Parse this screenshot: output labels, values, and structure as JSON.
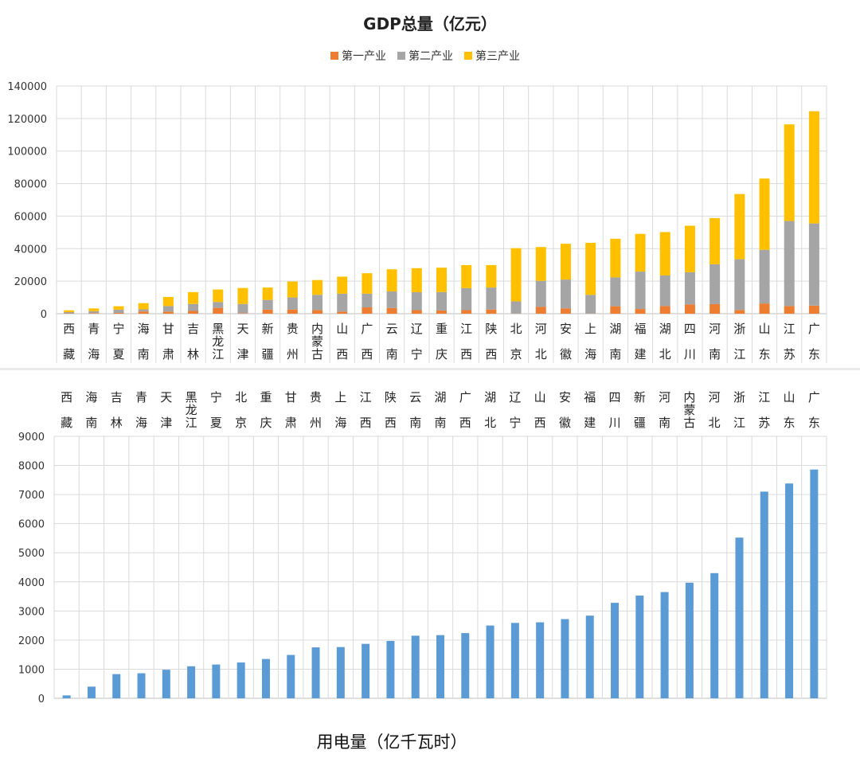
{
  "gdp_chart": {
    "type": "bar",
    "stacked": true,
    "title": "GDP总量（亿元）",
    "legend_position": "top",
    "categories": [
      "西藏",
      "青海",
      "宁夏",
      "海南",
      "甘肃",
      "吉林",
      "黑龙江",
      "天津",
      "新疆",
      "贵州",
      "内蒙古",
      "山西",
      "广西",
      "云南",
      "辽宁",
      "重庆",
      "江西",
      "陕西",
      "北京",
      "河北",
      "安徽",
      "上海",
      "湖南",
      "福建",
      "湖北",
      "四川",
      "河南",
      "浙江",
      "山东",
      "江苏",
      "广东"
    ],
    "series": [
      {
        "name": "第一产业",
        "color": "#ED7D31",
        "values": [
          200,
          350,
          500,
          1400,
          1300,
          1700,
          3600,
          300,
          2500,
          2600,
          2300,
          1300,
          3900,
          3500,
          2200,
          2000,
          2200,
          2600,
          100,
          4200,
          3300,
          100,
          4600,
          2900,
          4700,
          5700,
          5900,
          2300,
          6300,
          4700,
          5000
        ]
      },
      {
        "name": "第二产业",
        "color": "#A5A5A5",
        "values": [
          800,
          1200,
          2000,
          1300,
          3400,
          4300,
          3600,
          5700,
          6000,
          7400,
          9300,
          11000,
          8400,
          10200,
          11000,
          11300,
          13500,
          13500,
          7500,
          16000,
          17700,
          11500,
          17700,
          23000,
          18800,
          19800,
          24500,
          31200,
          33000,
          52300,
          50500
        ]
      },
      {
        "name": "第三产业",
        "color": "#FFC000",
        "values": [
          1100,
          1700,
          2100,
          3800,
          5600,
          7300,
          7700,
          9800,
          7600,
          9800,
          9100,
          10500,
          12600,
          13600,
          14800,
          15000,
          14200,
          13800,
          32700,
          20800,
          22000,
          32000,
          23800,
          23200,
          26700,
          28600,
          28400,
          40100,
          43800,
          59400,
          69000
        ]
      }
    ],
    "ylim": [
      0,
      140000
    ],
    "yticks": [
      0,
      20000,
      40000,
      60000,
      80000,
      100000,
      120000,
      140000
    ]
  },
  "elec_chart": {
    "type": "bar",
    "title": "用电量（亿千瓦时）",
    "categories": [
      "西藏",
      "海南",
      "吉林",
      "青海",
      "天津",
      "黑龙江",
      "宁夏",
      "北京",
      "重庆",
      "甘肃",
      "贵州",
      "上海",
      "江西",
      "陕西",
      "云南",
      "湖南",
      "广西",
      "湖北",
      "辽宁",
      "山西",
      "安徽",
      "福建",
      "四川",
      "新疆",
      "河南",
      "内蒙古",
      "河北",
      "浙江",
      "江苏",
      "山东",
      "广东"
    ],
    "series": [
      {
        "name": "",
        "color": "#5B9BD5",
        "values": [
          100,
          400,
          830,
          860,
          980,
          1100,
          1160,
          1230,
          1350,
          1490,
          1750,
          1760,
          1870,
          1970,
          2150,
          2170,
          2240,
          2500,
          2590,
          2610,
          2720,
          2840,
          3280,
          3530,
          3650,
          3970,
          4300,
          5520,
          7100,
          7380,
          7860
        ]
      }
    ],
    "ylim": [
      0,
      9000
    ],
    "yticks": [
      0,
      1000,
      2000,
      3000,
      4000,
      5000,
      6000,
      7000,
      8000,
      9000
    ]
  }
}
